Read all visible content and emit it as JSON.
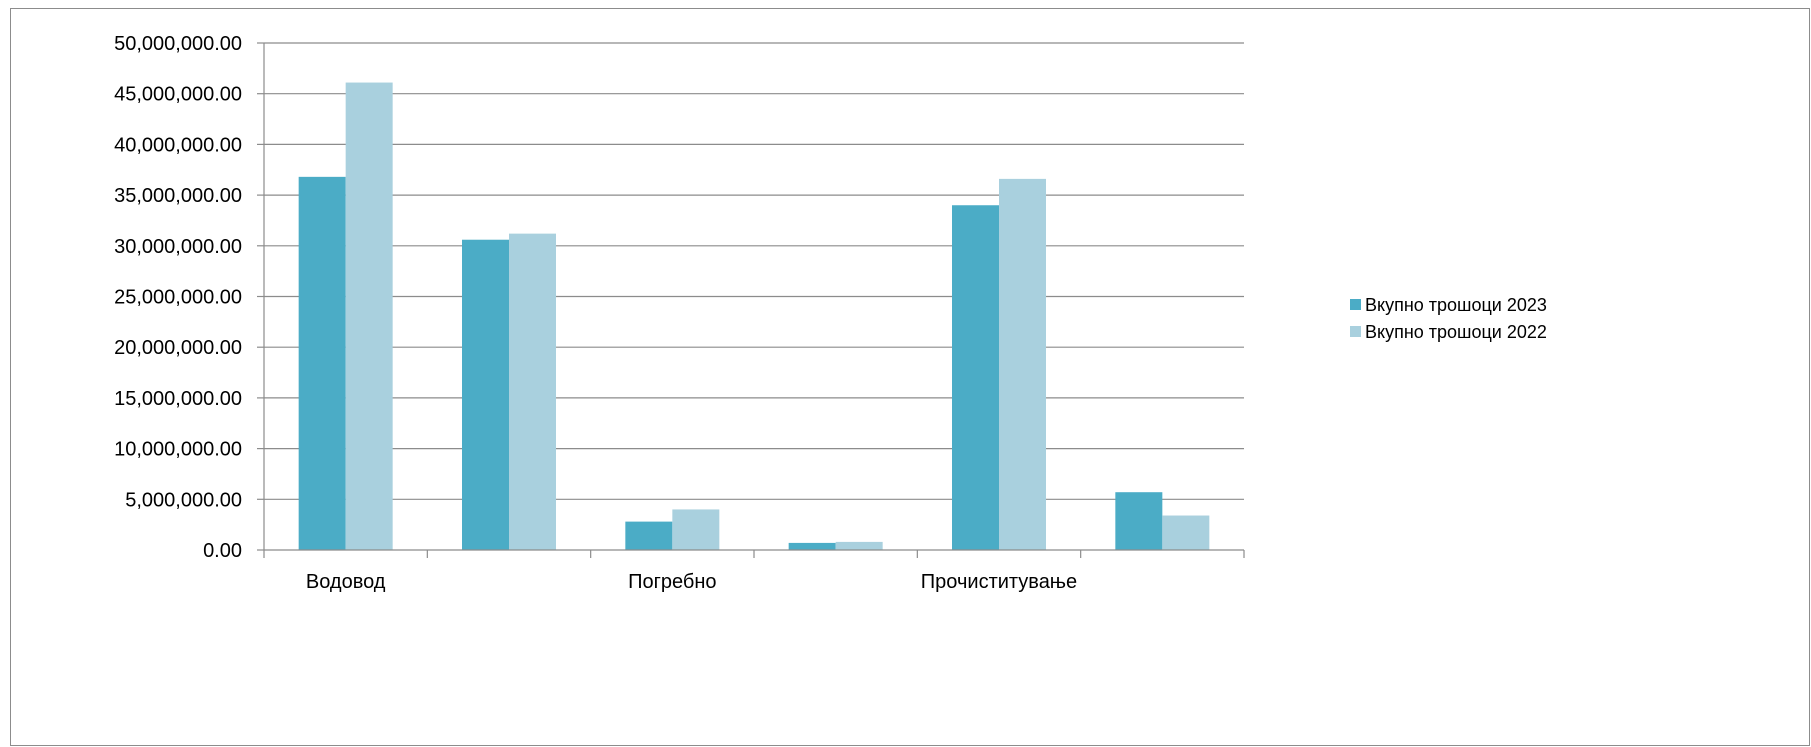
{
  "chart_data": {
    "type": "bar",
    "categories": [
      "Водовод",
      "",
      "Погребно",
      "",
      "Прочиститување",
      ""
    ],
    "series": [
      {
        "name": "Вкупно трошоци 2023",
        "color": "#4bacc6",
        "values": [
          36800000,
          30600000,
          2800000,
          700000,
          34000000,
          5700000
        ]
      },
      {
        "name": "Вкупно трошоци 2022",
        "color": "#a9d0de",
        "values": [
          46100000,
          31200000,
          4000000,
          800000,
          36600000,
          3400000
        ]
      }
    ],
    "ylim": [
      0,
      50000000
    ],
    "ytick_step": 5000000,
    "ytick_labels": [
      "0.00",
      "5,000,000.00",
      "10,000,000.00",
      "15,000,000.00",
      "20,000,000.00",
      "25,000,000.00",
      "30,000,000.00",
      "35,000,000.00",
      "40,000,000.00",
      "45,000,000.00",
      "50,000,000.00"
    ],
    "grid": true,
    "legend_position": "right",
    "title": "",
    "xlabel": "",
    "ylabel": ""
  }
}
